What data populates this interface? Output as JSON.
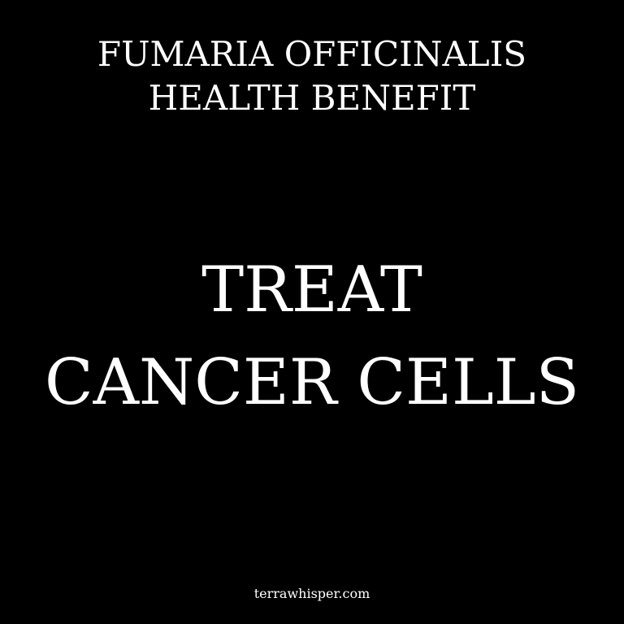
{
  "header": {
    "line1": "FUMARIA OFFICINALIS",
    "line2": "HEALTH BENEFIT"
  },
  "main": {
    "line1": "TREAT",
    "line2": "CANCER CELLS"
  },
  "footer": {
    "website": "terrawhisper.com"
  },
  "colors": {
    "background": "#000000",
    "text": "#ffffff"
  }
}
